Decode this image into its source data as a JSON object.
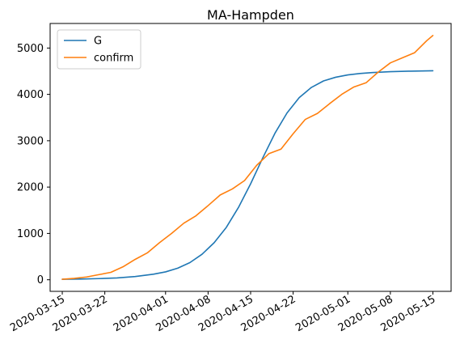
{
  "chart_data": {
    "type": "line",
    "title": "MA-Hampden",
    "xlabel": "",
    "ylabel": "",
    "x_start": "2020-03-15",
    "x_end": "2020-05-15",
    "xlim": [
      "2020-03-13",
      "2020-05-18"
    ],
    "ylim": [
      -250,
      5530
    ],
    "x_ticks": [
      "2020-03-15",
      "2020-03-22",
      "2020-04-01",
      "2020-04-08",
      "2020-04-15",
      "2020-04-22",
      "2020-05-01",
      "2020-05-08",
      "2020-05-15"
    ],
    "y_ticks": [
      0,
      1000,
      2000,
      3000,
      4000,
      5000
    ],
    "legend_position": "upper left",
    "grid": false,
    "series": [
      {
        "name": "G",
        "color": "#1f77b4",
        "x": [
          "2020-03-15",
          "2020-03-18",
          "2020-03-21",
          "2020-03-24",
          "2020-03-27",
          "2020-03-30",
          "2020-04-01",
          "2020-04-03",
          "2020-04-05",
          "2020-04-07",
          "2020-04-09",
          "2020-04-11",
          "2020-04-13",
          "2020-04-15",
          "2020-04-17",
          "2020-04-19",
          "2020-04-21",
          "2020-04-23",
          "2020-04-25",
          "2020-04-27",
          "2020-04-29",
          "2020-05-01",
          "2020-05-03",
          "2020-05-05",
          "2020-05-08",
          "2020-05-11",
          "2020-05-15"
        ],
        "values": [
          10,
          15,
          25,
          40,
          70,
          120,
          170,
          250,
          370,
          550,
          800,
          1130,
          1560,
          2070,
          2630,
          3160,
          3600,
          3930,
          4150,
          4290,
          4370,
          4420,
          4450,
          4470,
          4490,
          4500,
          4510
        ]
      },
      {
        "name": "confirm",
        "color": "#ff7f0e",
        "x": [
          "2020-03-15",
          "2020-03-17",
          "2020-03-19",
          "2020-03-21",
          "2020-03-23",
          "2020-03-25",
          "2020-03-27",
          "2020-03-29",
          "2020-03-31",
          "2020-04-02",
          "2020-04-04",
          "2020-04-06",
          "2020-04-08",
          "2020-04-10",
          "2020-04-12",
          "2020-04-14",
          "2020-04-16",
          "2020-04-18",
          "2020-04-20",
          "2020-04-22",
          "2020-04-24",
          "2020-04-26",
          "2020-04-28",
          "2020-04-30",
          "2020-05-02",
          "2020-05-04",
          "2020-05-06",
          "2020-05-08",
          "2020-05-10",
          "2020-05-12",
          "2020-05-14",
          "2020-05-15"
        ],
        "values": [
          10,
          30,
          60,
          110,
          160,
          280,
          440,
          580,
          800,
          1000,
          1220,
          1380,
          1600,
          1830,
          1960,
          2140,
          2470,
          2720,
          2820,
          3150,
          3460,
          3590,
          3800,
          4000,
          4160,
          4250,
          4480,
          4680,
          4790,
          4900,
          5160,
          5270
        ]
      }
    ]
  }
}
